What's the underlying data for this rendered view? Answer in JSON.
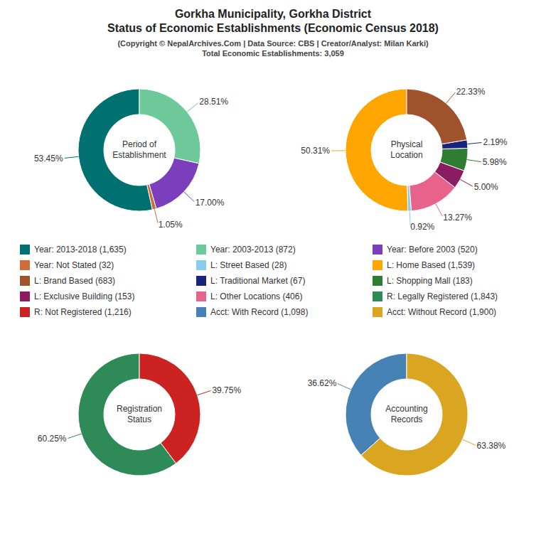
{
  "title": "Gorkha Municipality, Gorkha District\nStatus of Economic Establishments (Economic Census 2018)",
  "subtitle": "(Copyright © NepalArchives.Com | Data Source: CBS | Creator/Analyst: Milan Karki)\nTotal Economic Establishments: 3,059",
  "legend_items": [
    {
      "name": "Year: 2013-2018 (1,635)",
      "color": "#007070"
    },
    {
      "name": "Year: Not Stated (32)",
      "color": "#CD6E3A"
    },
    {
      "name": "L: Brand Based (683)",
      "color": "#A0522D"
    },
    {
      "name": "L: Exclusive Building (153)",
      "color": "#8B1C62"
    },
    {
      "name": "R: Not Registered (1,216)",
      "color": "#CC2222"
    },
    {
      "name": "Year: 2003-2013 (872)",
      "color": "#6DC89A"
    },
    {
      "name": "L: Street Based (28)",
      "color": "#87CEEB"
    },
    {
      "name": "L: Traditional Market (67)",
      "color": "#1A237E"
    },
    {
      "name": "L: Other Locations (406)",
      "color": "#E8638C"
    },
    {
      "name": "Acct: With Record (1,098)",
      "color": "#4682B4"
    },
    {
      "name": "Year: Before 2003 (520)",
      "color": "#7B3FBE"
    },
    {
      "name": "L: Home Based (1,539)",
      "color": "#FFA500"
    },
    {
      "name": "L: Shopping Mall (183)",
      "color": "#2E7D32"
    },
    {
      "name": "R: Legally Registered (1,843)",
      "color": "#2E8B57"
    },
    {
      "name": "Acct: Without Record (1,900)",
      "color": "#DAA520"
    }
  ],
  "chart_data": [
    {
      "type": "pie",
      "title": "Period of\nEstablishment",
      "values": [
        53.45,
        1.05,
        17.0,
        28.51
      ],
      "value_labels": [
        "53.45%",
        "1.05%",
        "17.00%",
        "28.51%"
      ],
      "colors": [
        "#007070",
        "#CD6E3A",
        "#7B3FBE",
        "#6DC89A"
      ],
      "data_labels": true
    },
    {
      "type": "pie",
      "title": "Physical\nLocation",
      "values": [
        50.31,
        0.92,
        13.27,
        5.0,
        5.98,
        2.19,
        22.33
      ],
      "value_labels": [
        "50.31%",
        "0.92%",
        "13.27%",
        "5.00%",
        "5.98%",
        "2.19%",
        "22.33%"
      ],
      "colors": [
        "#FFA500",
        "#87CEEB",
        "#E8638C",
        "#8B1C62",
        "#2E7D32",
        "#1A237E",
        "#A0522D"
      ],
      "data_labels": true
    },
    {
      "type": "pie",
      "title": "Registration\nStatus",
      "values": [
        60.25,
        39.75
      ],
      "value_labels": [
        "60.25%",
        "39.75%"
      ],
      "colors": [
        "#2E8B57",
        "#CC2222"
      ],
      "data_labels": true
    },
    {
      "type": "pie",
      "title": "Accounting\nRecords",
      "values": [
        36.62,
        63.38
      ],
      "value_labels": [
        "36.62%",
        "63.38%"
      ],
      "colors": [
        "#4682B4",
        "#DAA520"
      ],
      "data_labels": true
    }
  ]
}
